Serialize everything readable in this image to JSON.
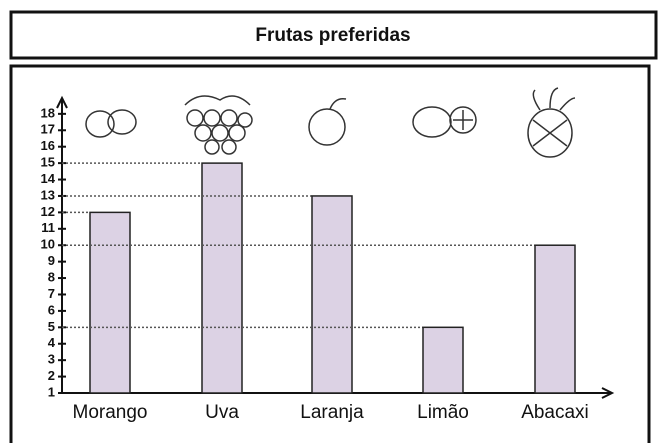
{
  "chart_data": {
    "type": "bar",
    "title": "Frutas preferidas",
    "categories": [
      "Morango",
      "Uva",
      "Laranja",
      "Limão",
      "Abacaxi"
    ],
    "values": [
      12,
      15,
      13,
      5,
      10
    ],
    "color": "#dcd2e4",
    "ylim": [
      1,
      18.6
    ],
    "yticks": [
      1,
      2,
      3,
      4,
      5,
      6,
      7,
      8,
      9,
      10,
      11,
      12,
      13,
      14,
      15,
      16,
      17,
      18
    ]
  }
}
